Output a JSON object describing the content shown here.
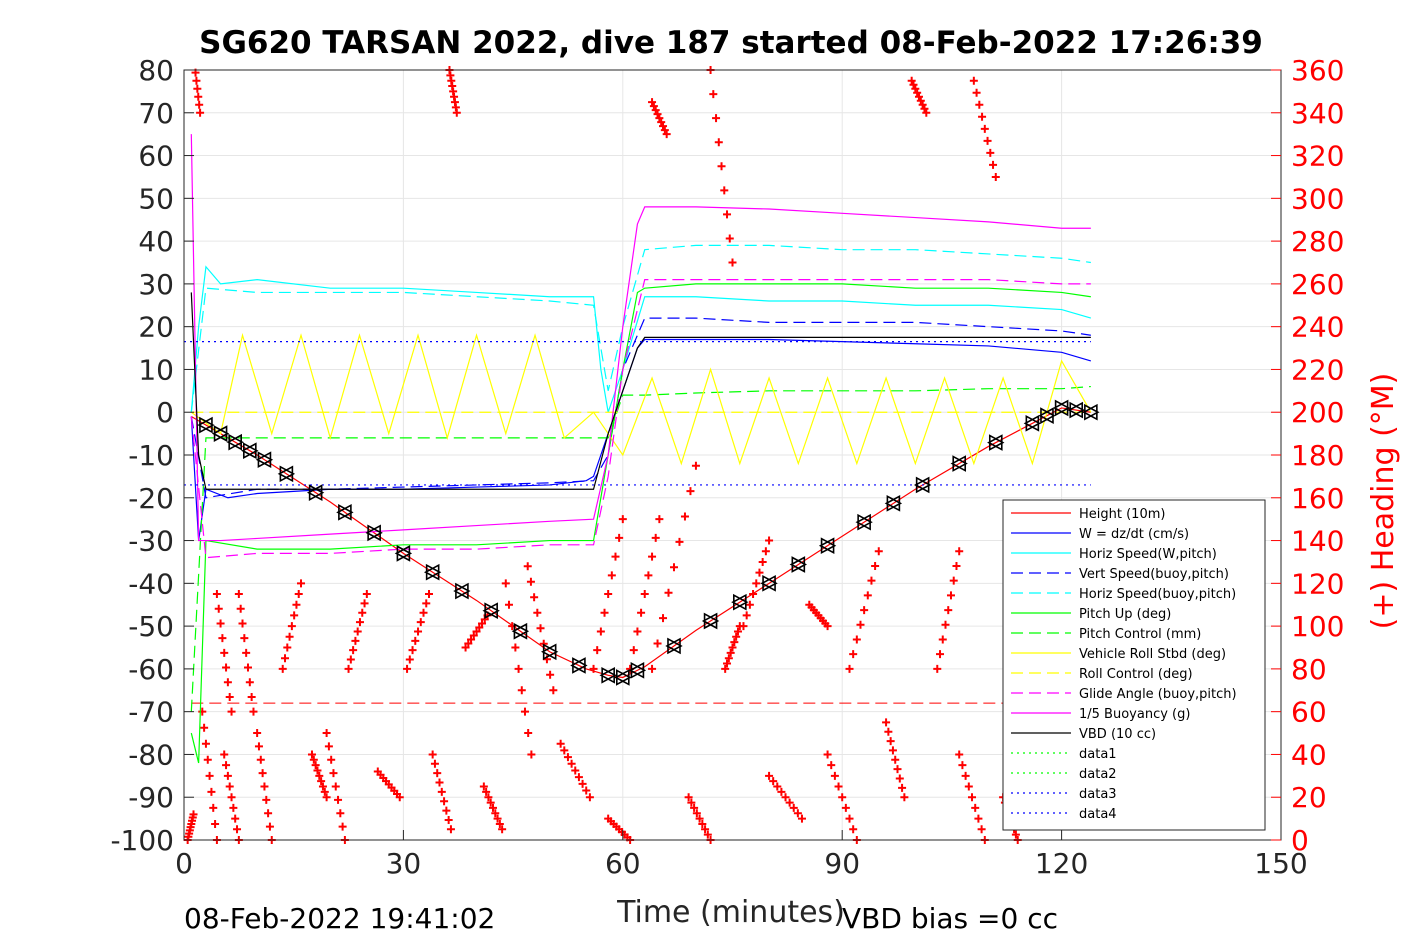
{
  "chart_data": {
    "type": "line",
    "title": "SG620 TARSAN 2022, dive 187 started 08-Feb-2022 17:26:39",
    "xlabel": "Time (minutes)",
    "ylabel": "",
    "y2label": "(+) Heading (°M)",
    "xlim": [
      0,
      150
    ],
    "ylim": [
      -100,
      80
    ],
    "y2lim": [
      0,
      360
    ],
    "xticks": [
      "0",
      "30",
      "60",
      "90",
      "120",
      "150"
    ],
    "yticks": [
      "80",
      "70",
      "60",
      "50",
      "40",
      "30",
      "20",
      "10",
      "0",
      "-10",
      "-20",
      "-30",
      "-40",
      "-50",
      "-60",
      "-70",
      "-80",
      "-90",
      "-100"
    ],
    "y2ticks": [
      "360",
      "340",
      "320",
      "300",
      "280",
      "260",
      "240",
      "220",
      "200",
      "180",
      "160",
      "140",
      "120",
      "100",
      "80",
      "60",
      "40",
      "20",
      "0"
    ],
    "grid": true,
    "legend_position": "bottom-right",
    "footer_left": "08-Feb-2022 19:41:02",
    "footer_right": "VBD bias =0 cc",
    "series": [
      {
        "name": "Height (10m)",
        "color": "#ff0000",
        "style": "solid",
        "x": [
          1,
          10,
          20,
          30,
          40,
          50,
          55,
          58,
          60,
          63,
          70,
          80,
          90,
          100,
          110,
          120,
          124
        ],
        "y": [
          -1,
          -10,
          -21,
          -33,
          -44,
          -56,
          -60,
          -61.5,
          -62,
          -59.5,
          -51,
          -40,
          -29,
          -18,
          -8,
          1,
          0
        ]
      },
      {
        "name": "W = dz/dt (cm/s)",
        "color": "#0000ff",
        "style": "solid",
        "x": [
          1,
          2,
          3,
          6,
          10,
          20,
          30,
          40,
          50,
          55,
          56,
          58,
          60,
          62,
          63,
          70,
          80,
          90,
          100,
          110,
          120,
          124
        ],
        "y": [
          -1,
          -30,
          -18,
          -20,
          -19,
          -18,
          -18,
          -17.5,
          -17,
          -16,
          -15,
          -5,
          5,
          15,
          17,
          17,
          17,
          16.5,
          16,
          15.5,
          14,
          12
        ]
      },
      {
        "name": "Horiz Speed(W,pitch)",
        "color": "#00ffff",
        "style": "solid",
        "x": [
          1,
          2,
          3,
          5,
          10,
          20,
          30,
          40,
          50,
          56,
          57,
          58,
          60,
          63,
          70,
          80,
          90,
          100,
          110,
          120,
          124
        ],
        "y": [
          0,
          20,
          34,
          30,
          31,
          29,
          29,
          28,
          27,
          27,
          10,
          0,
          10,
          27,
          27,
          26,
          26,
          25,
          25,
          24,
          22
        ]
      },
      {
        "name": "Vert Speed(buoy,pitch)",
        "color": "#0000ff",
        "style": "dashed",
        "x": [
          1,
          3,
          10,
          20,
          30,
          40,
          50,
          56,
          58,
          60,
          63,
          70,
          80,
          90,
          100,
          110,
          120,
          124
        ],
        "y": [
          -1,
          -20,
          -18,
          -18,
          -17.5,
          -17,
          -16.5,
          -16,
          -10,
          10,
          22,
          22,
          21,
          21,
          21,
          20,
          19,
          18
        ]
      },
      {
        "name": "Horiz Speed(buoy,pitch)",
        "color": "#00ffff",
        "style": "dashed",
        "x": [
          1,
          3,
          10,
          20,
          30,
          40,
          50,
          56,
          58,
          60,
          63,
          70,
          80,
          90,
          100,
          110,
          120,
          124
        ],
        "y": [
          0,
          29,
          28,
          28,
          28,
          27,
          26,
          25,
          5,
          20,
          38,
          39,
          39,
          38,
          38,
          37,
          36,
          35
        ]
      },
      {
        "name": "Pitch Up (deg)",
        "color": "#00ff00",
        "style": "solid",
        "x": [
          1,
          2,
          3,
          10,
          20,
          30,
          40,
          50,
          56,
          58,
          60,
          62,
          63,
          70,
          80,
          90,
          100,
          110,
          120,
          124
        ],
        "y": [
          -75,
          -82,
          -30,
          -32,
          -32,
          -31,
          -31,
          -30,
          -30,
          -10,
          10,
          28,
          29,
          30,
          30,
          30,
          29,
          29,
          28,
          27
        ]
      },
      {
        "name": "Pitch Control (mm)",
        "color": "#00ff00",
        "style": "dashed",
        "x": [
          1,
          3,
          10,
          20,
          30,
          40,
          50,
          56,
          58,
          60,
          63,
          70,
          80,
          90,
          100,
          110,
          120,
          124
        ],
        "y": [
          -70,
          -6,
          -6,
          -6,
          -6,
          -6,
          -6,
          -6,
          -6,
          4,
          4,
          4.5,
          5,
          5,
          5,
          5.5,
          5.5,
          6
        ]
      },
      {
        "name": "Vehicle Roll Stbd (deg)",
        "color": "#ffff00",
        "style": "solid",
        "x": [
          1,
          5,
          8,
          12,
          16,
          20,
          24,
          28,
          32,
          36,
          40,
          44,
          48,
          52,
          56,
          60,
          64,
          68,
          72,
          76,
          80,
          84,
          88,
          92,
          96,
          100,
          104,
          108,
          112,
          116,
          120,
          124
        ],
        "y": [
          0,
          -5,
          18,
          -5,
          18,
          -6,
          18,
          -5,
          18,
          -6,
          18,
          -5,
          18,
          -6,
          0,
          -10,
          8,
          -12,
          10,
          -12,
          8,
          -12,
          8,
          -12,
          8,
          -12,
          8,
          -12,
          8,
          -12,
          12,
          0
        ]
      },
      {
        "name": "Roll Control (deg)",
        "color": "#ffff00",
        "style": "dashed",
        "x": [
          1,
          3,
          20,
          40,
          56,
          60,
          80,
          100,
          124
        ],
        "y": [
          0,
          0,
          0,
          0,
          0,
          0,
          0,
          0,
          0
        ]
      },
      {
        "name": "Glide Angle (buoy,pitch)",
        "color": "#ff00ff",
        "style": "dashed",
        "x": [
          1,
          3,
          10,
          20,
          30,
          40,
          50,
          56,
          58,
          60,
          63,
          70,
          80,
          90,
          100,
          110,
          120,
          124
        ],
        "y": [
          -1,
          -34,
          -33,
          -33,
          -32,
          -32,
          -31,
          -31,
          -15,
          10,
          31,
          31,
          31,
          31,
          31,
          31,
          30,
          30
        ]
      },
      {
        "name": "1/5 Buoyancy (g)",
        "color": "#ff00ff",
        "style": "solid",
        "x": [
          1,
          2,
          5,
          10,
          20,
          30,
          40,
          50,
          56,
          58,
          60,
          62,
          63,
          70,
          80,
          90,
          100,
          110,
          120,
          124
        ],
        "y": [
          65,
          -30,
          -30,
          -29.5,
          -28.5,
          -27.5,
          -26.5,
          -25.5,
          -25,
          -10,
          20,
          44,
          48,
          48,
          47.5,
          46.5,
          45.5,
          44.5,
          43,
          43
        ]
      },
      {
        "name": "VBD (10 cc)",
        "color": "#000000",
        "style": "solid",
        "x": [
          1,
          2,
          3,
          20,
          40,
          56,
          58,
          60,
          62,
          63,
          80,
          100,
          124
        ],
        "y": [
          28,
          -10,
          -18,
          -18,
          -18,
          -18,
          -5,
          5,
          15,
          17.5,
          17.5,
          17.5,
          17.5
        ]
      },
      {
        "name": "data1",
        "color": "#00ff00",
        "style": "dotted",
        "x": [],
        "y": []
      },
      {
        "name": "data2",
        "color": "#00ff00",
        "style": "dotted",
        "x": [],
        "y": []
      },
      {
        "name": "data3",
        "color": "#0000ff",
        "style": "dotted",
        "x": [
          0,
          124
        ],
        "y": [
          16.5,
          16.5
        ]
      },
      {
        "name": "data4",
        "color": "#0000ff",
        "style": "dotted",
        "x": [
          0,
          124
        ],
        "y": [
          -17,
          -17
        ]
      }
    ],
    "reference_lines": [
      {
        "color": "#ff0000",
        "style": "dashed",
        "x": [
          1,
          124
        ],
        "y": [
          -68,
          -68
        ]
      }
    ],
    "markers": {
      "triangles_x": [
        3,
        5,
        7,
        9,
        11,
        14,
        18,
        22,
        26,
        30,
        34,
        38,
        42,
        46,
        50,
        54,
        58,
        60,
        62,
        67,
        72,
        76,
        80,
        84,
        88,
        93,
        97,
        101,
        106,
        111,
        116,
        118,
        120,
        122,
        124
      ]
    },
    "heading_series": {
      "name": "(+) Heading",
      "axis": "right",
      "color": "#ff0000",
      "sweeps": [
        {
          "x0": 0.5,
          "x1": 1.3,
          "y0": 0,
          "y1": 12
        },
        {
          "x0": 1.2,
          "x1": 2.2,
          "y0": 370,
          "y1": 340
        },
        {
          "x0": 2.5,
          "x1": 4.5,
          "y0": 60,
          "y1": 0
        },
        {
          "x0": 4.5,
          "x1": 6.5,
          "y0": 115,
          "y1": 60
        },
        {
          "x0": 5.5,
          "x1": 7.5,
          "y0": 40,
          "y1": 0
        },
        {
          "x0": 7.5,
          "x1": 9.5,
          "y0": 115,
          "y1": 60
        },
        {
          "x0": 10,
          "x1": 12,
          "y0": 50,
          "y1": 0
        },
        {
          "x0": 13.5,
          "x1": 16,
          "y0": 80,
          "y1": 120
        },
        {
          "x0": 17.5,
          "x1": 19.5,
          "y0": 40,
          "y1": 20
        },
        {
          "x0": 19.5,
          "x1": 22,
          "y0": 50,
          "y1": 0
        },
        {
          "x0": 22.5,
          "x1": 25,
          "y0": 80,
          "y1": 115
        },
        {
          "x0": 26.5,
          "x1": 29.5,
          "y0": 32,
          "y1": 20
        },
        {
          "x0": 30.5,
          "x1": 33.5,
          "y0": 80,
          "y1": 115
        },
        {
          "x0": 34,
          "x1": 36.5,
          "y0": 40,
          "y1": 5
        },
        {
          "x0": 36.3,
          "x1": 37.3,
          "y0": 360,
          "y1": 340
        },
        {
          "x0": 38.5,
          "x1": 41.5,
          "y0": 90,
          "y1": 105
        },
        {
          "x0": 41,
          "x1": 43.5,
          "y0": 25,
          "y1": 5
        },
        {
          "x0": 44,
          "x1": 47.5,
          "y0": 120,
          "y1": 40
        },
        {
          "x0": 47,
          "x1": 50.5,
          "y0": 128,
          "y1": 70
        },
        {
          "x0": 51.5,
          "x1": 55.5,
          "y0": 45,
          "y1": 20
        },
        {
          "x0": 56,
          "x1": 60,
          "y0": 80,
          "y1": 150
        },
        {
          "x0": 58,
          "x1": 61,
          "y0": 10,
          "y1": 0
        },
        {
          "x0": 61,
          "x1": 65,
          "y0": 80,
          "y1": 150
        },
        {
          "x0": 64,
          "x1": 66,
          "y0": 345,
          "y1": 330
        },
        {
          "x0": 64,
          "x1": 70,
          "y0": 80,
          "y1": 175
        },
        {
          "x0": 69,
          "x1": 72,
          "y0": 20,
          "y1": 0
        },
        {
          "x0": 72,
          "x1": 75,
          "y0": 360,
          "y1": 270
        },
        {
          "x0": 74,
          "x1": 76,
          "y0": 80,
          "y1": 100
        },
        {
          "x0": 76.5,
          "x1": 80,
          "y0": 100,
          "y1": 140
        },
        {
          "x0": 80,
          "x1": 84.5,
          "y0": 30,
          "y1": 10
        },
        {
          "x0": 85.5,
          "x1": 88,
          "y0": 110,
          "y1": 100
        },
        {
          "x0": 88,
          "x1": 92,
          "y0": 40,
          "y1": 0
        },
        {
          "x0": 91,
          "x1": 95,
          "y0": 80,
          "y1": 135
        },
        {
          "x0": 96,
          "x1": 98.5,
          "y0": 55,
          "y1": 20
        },
        {
          "x0": 99.5,
          "x1": 101.5,
          "y0": 355,
          "y1": 340
        },
        {
          "x0": 103,
          "x1": 106,
          "y0": 80,
          "y1": 135
        },
        {
          "x0": 106,
          "x1": 109.5,
          "y0": 40,
          "y1": 0
        },
        {
          "x0": 108,
          "x1": 111,
          "y0": 355,
          "y1": 310
        },
        {
          "x0": 112,
          "x1": 114,
          "y0": 20,
          "y1": 0
        }
      ]
    }
  }
}
